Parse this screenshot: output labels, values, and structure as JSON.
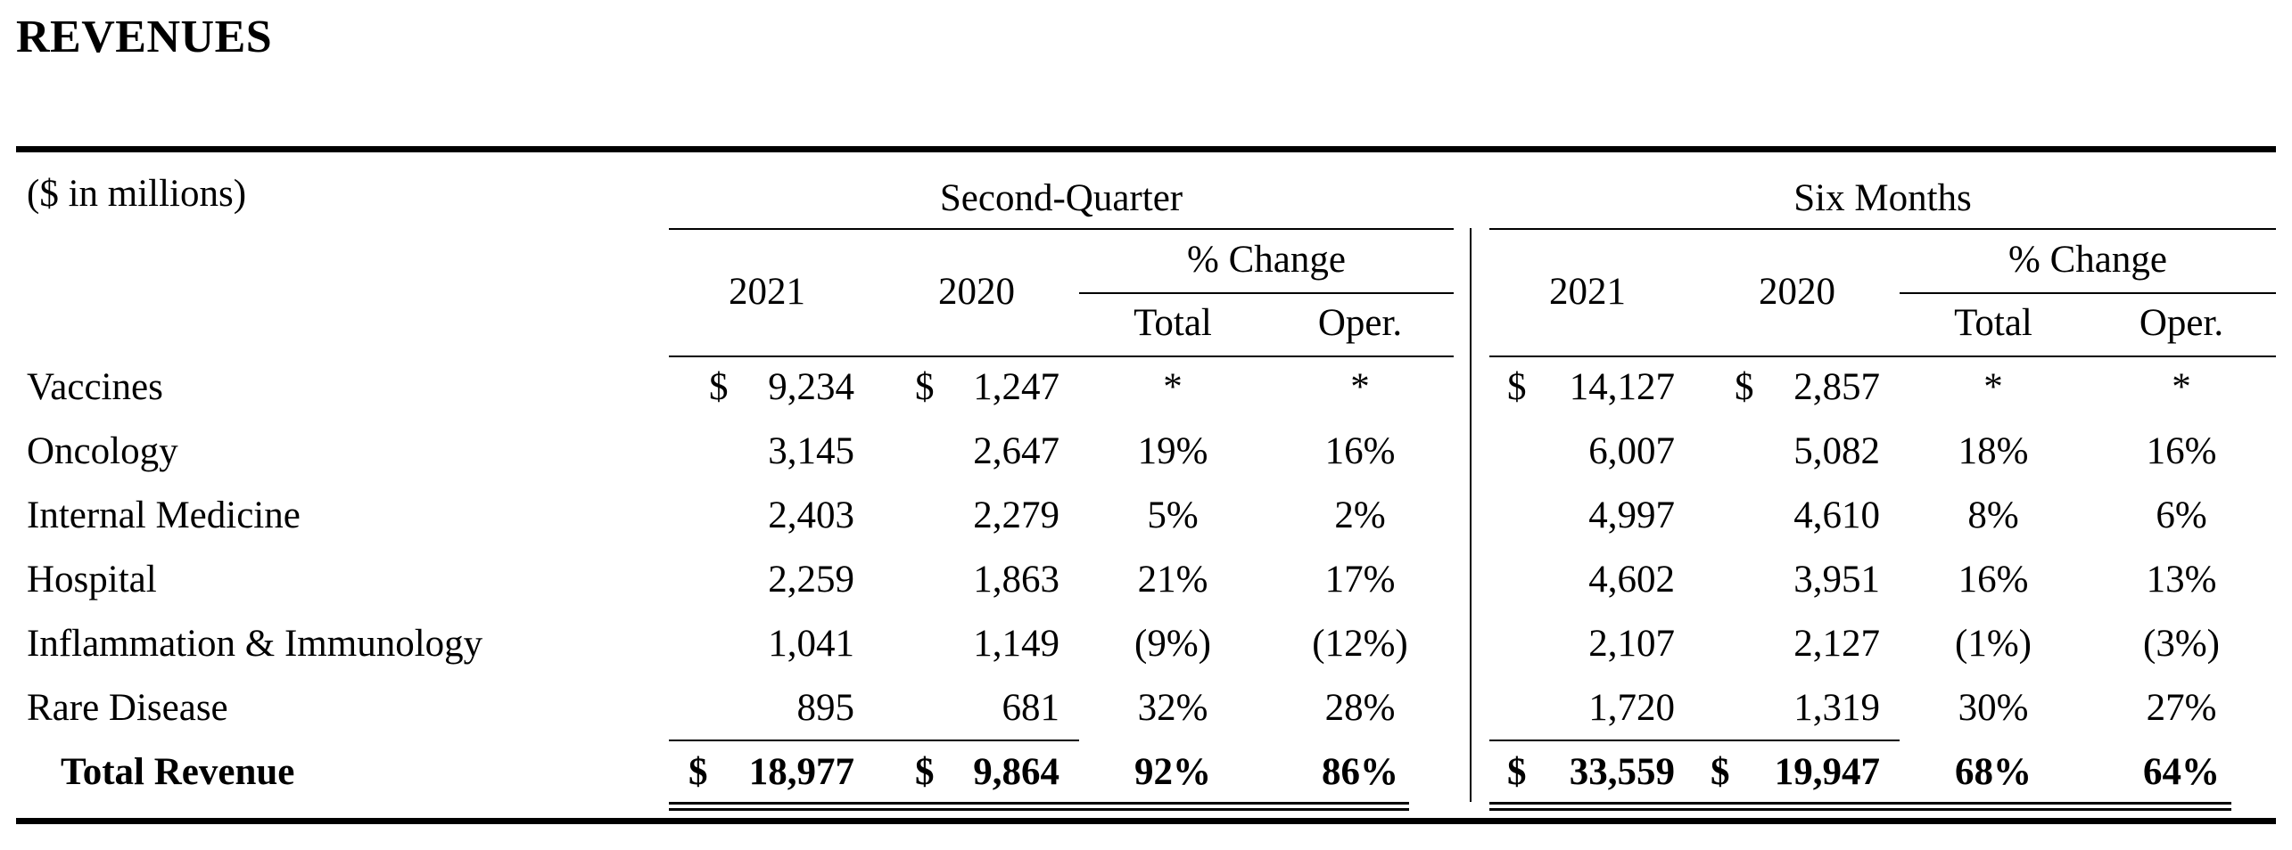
{
  "title": "REVENUES",
  "units_label": "($ in millions)",
  "groups": [
    {
      "label": "Second-Quarter",
      "year_current": "2021",
      "year_prior": "2020",
      "change_label": "% Change",
      "total_label": "Total",
      "oper_label": "Oper."
    },
    {
      "label": "Six Months",
      "year_current": "2021",
      "year_prior": "2020",
      "change_label": "% Change",
      "total_label": "Total",
      "oper_label": "Oper."
    }
  ],
  "currency_symbol": "$",
  "rows": [
    {
      "label": "Vaccines",
      "q": [
        "9,234",
        "1,247",
        "*",
        "*"
      ],
      "s": [
        "14,127",
        "2,857",
        "*",
        "*"
      ]
    },
    {
      "label": "Oncology",
      "q": [
        "3,145",
        "2,647",
        "19%",
        "16%"
      ],
      "s": [
        "6,007",
        "5,082",
        "18%",
        "16%"
      ]
    },
    {
      "label": "Internal Medicine",
      "q": [
        "2,403",
        "2,279",
        "5%",
        "2%"
      ],
      "s": [
        "4,997",
        "4,610",
        "8%",
        "6%"
      ]
    },
    {
      "label": "Hospital",
      "q": [
        "2,259",
        "1,863",
        "21%",
        "17%"
      ],
      "s": [
        "4,602",
        "3,951",
        "16%",
        "13%"
      ]
    },
    {
      "label": "Inflammation & Immunology",
      "q": [
        "1,041",
        "1,149",
        "(9%)",
        "(12%)"
      ],
      "s": [
        "2,107",
        "2,127",
        "(1%)",
        "(3%)"
      ]
    },
    {
      "label": "Rare Disease",
      "q": [
        "895",
        "681",
        "32%",
        "28%"
      ],
      "s": [
        "1,720",
        "1,319",
        "30%",
        "27%"
      ]
    }
  ],
  "total": {
    "label": "Total Revenue",
    "q": [
      "18,977",
      "9,864",
      "92%",
      "86%"
    ],
    "s": [
      "33,559",
      "19,947",
      "68%",
      "64%"
    ]
  }
}
